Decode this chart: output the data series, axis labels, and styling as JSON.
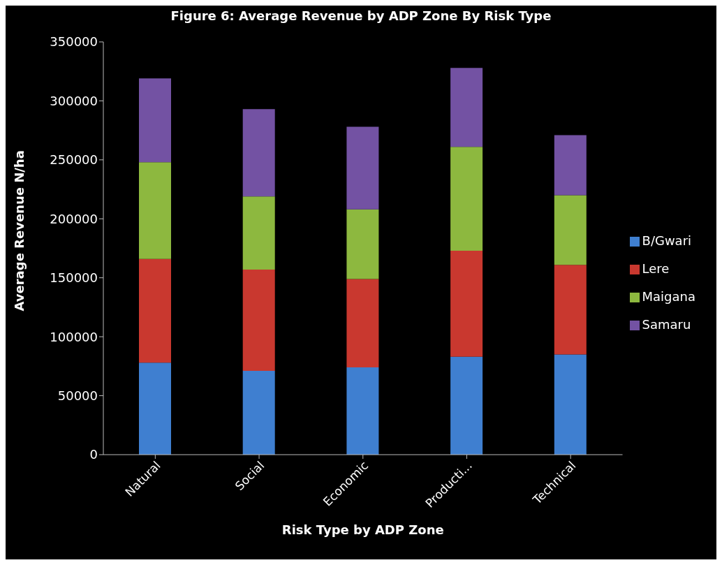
{
  "chart_data": {
    "type": "bar",
    "stacked": true,
    "title": "Figure 6: Average Revenue by ADP Zone By Risk Type",
    "xlabel": "Risk Type by ADP Zone",
    "ylabel": "Average Revenue N/ha",
    "categories": [
      "Natural",
      "Social",
      "Economic",
      "Producti...",
      "Technical"
    ],
    "series": [
      {
        "name": "B/Gwari",
        "color": "#3f7fd0",
        "values": [
          78000,
          71000,
          74000,
          83000,
          85000
        ]
      },
      {
        "name": "Lere",
        "color": "#c9382f",
        "values": [
          88000,
          86000,
          75000,
          90000,
          76000
        ]
      },
      {
        "name": "Maigana",
        "color": "#8db83f",
        "values": [
          82000,
          62000,
          59000,
          88000,
          59000
        ]
      },
      {
        "name": "Samaru",
        "color": "#7352a3",
        "values": [
          71000,
          74000,
          70000,
          67000,
          51000
        ]
      }
    ],
    "ylim": [
      0,
      350000
    ],
    "yticks": [
      0,
      50000,
      100000,
      150000,
      200000,
      250000,
      300000,
      350000
    ],
    "grid": false,
    "legend": "right"
  }
}
